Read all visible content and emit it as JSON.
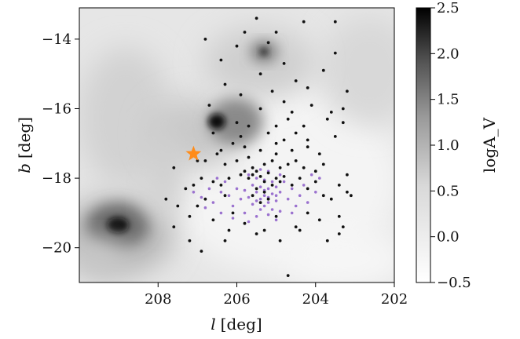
{
  "chart_data": {
    "type": "scatter",
    "background": "extinction map (logA_V), grayscale",
    "xlabel": {
      "var": "l",
      "unit": "[deg]"
    },
    "ylabel": {
      "var": "b",
      "unit": "[deg]"
    },
    "xlim": [
      210,
      202
    ],
    "ylim": [
      -21,
      -13.1
    ],
    "xticks": [
      208,
      206,
      204,
      202
    ],
    "yticks": [
      -14,
      -16,
      -18,
      -20
    ],
    "colorbar": {
      "label": "logA_V",
      "range": [
        -0.5,
        2.5
      ],
      "ticks": [
        "2.5",
        "2.0",
        "1.5",
        "1.0",
        "0.5",
        "0.0",
        "−0.5"
      ],
      "tick_values": [
        2.5,
        2.0,
        1.5,
        1.0,
        0.5,
        0.0,
        -0.5
      ]
    },
    "star_marker": {
      "l": 207.1,
      "b": -17.3,
      "color": "#ff8c1a"
    },
    "series": [
      {
        "color": "#111111",
        "points": [
          [
            205.5,
            -13.4
          ],
          [
            205.8,
            -13.8
          ],
          [
            205.0,
            -13.8
          ],
          [
            204.3,
            -13.5
          ],
          [
            203.5,
            -13.5
          ],
          [
            206.8,
            -14.0
          ],
          [
            206.0,
            -14.2
          ],
          [
            205.2,
            -14.1
          ],
          [
            203.5,
            -14.4
          ],
          [
            206.4,
            -14.6
          ],
          [
            204.8,
            -14.7
          ],
          [
            203.8,
            -14.9
          ],
          [
            205.4,
            -15.0
          ],
          [
            204.5,
            -15.2
          ],
          [
            204.2,
            -15.4
          ],
          [
            206.3,
            -15.3
          ],
          [
            205.9,
            -15.6
          ],
          [
            205.1,
            -15.5
          ],
          [
            204.8,
            -15.8
          ],
          [
            203.2,
            -15.5
          ],
          [
            204.1,
            -15.9
          ],
          [
            206.7,
            -15.9
          ],
          [
            205.4,
            -16.0
          ],
          [
            204.6,
            -16.1
          ],
          [
            203.6,
            -16.1
          ],
          [
            203.3,
            -16.0
          ],
          [
            206.0,
            -16.4
          ],
          [
            205.7,
            -16.5
          ],
          [
            205.0,
            -16.5
          ],
          [
            204.3,
            -16.5
          ],
          [
            203.7,
            -16.3
          ],
          [
            206.6,
            -16.7
          ],
          [
            205.2,
            -16.7
          ],
          [
            204.8,
            -16.9
          ],
          [
            203.3,
            -16.4
          ],
          [
            203.5,
            -16.8
          ],
          [
            204.5,
            -16.7
          ],
          [
            206.1,
            -17.0
          ],
          [
            205.8,
            -17.1
          ],
          [
            205.4,
            -17.2
          ],
          [
            205.0,
            -17.0
          ],
          [
            204.6,
            -17.2
          ],
          [
            204.2,
            -17.1
          ],
          [
            203.9,
            -17.3
          ],
          [
            206.5,
            -17.3
          ],
          [
            206.8,
            -17.5
          ],
          [
            206.3,
            -17.6
          ],
          [
            206.0,
            -17.5
          ],
          [
            205.7,
            -17.4
          ],
          [
            205.6,
            -17.7
          ],
          [
            205.3,
            -17.6
          ],
          [
            205.1,
            -17.5
          ],
          [
            204.9,
            -17.7
          ],
          [
            204.7,
            -17.6
          ],
          [
            204.5,
            -17.5
          ],
          [
            204.3,
            -17.7
          ],
          [
            204.0,
            -17.8
          ],
          [
            203.8,
            -17.6
          ],
          [
            205.8,
            -17.8
          ],
          [
            205.9,
            -17.9
          ],
          [
            205.6,
            -17.9
          ],
          [
            205.5,
            -17.8
          ],
          [
            205.4,
            -17.95
          ],
          [
            205.7,
            -18.0
          ],
          [
            205.3,
            -18.1
          ],
          [
            205.2,
            -17.85
          ],
          [
            205.0,
            -18.0
          ],
          [
            205.1,
            -18.2
          ],
          [
            204.9,
            -18.1
          ],
          [
            204.8,
            -17.95
          ],
          [
            205.5,
            -18.3
          ],
          [
            205.3,
            -18.4
          ],
          [
            205.6,
            -18.5
          ],
          [
            205.2,
            -18.6
          ],
          [
            205.4,
            -18.7
          ],
          [
            206.2,
            -18.0
          ],
          [
            206.4,
            -18.2
          ],
          [
            206.6,
            -18.1
          ],
          [
            206.9,
            -18.0
          ],
          [
            207.1,
            -18.2
          ],
          [
            206.3,
            -18.5
          ],
          [
            206.8,
            -18.6
          ],
          [
            207.0,
            -18.8
          ],
          [
            204.6,
            -18.2
          ],
          [
            204.4,
            -18.0
          ],
          [
            204.2,
            -18.3
          ],
          [
            204.0,
            -18.1
          ],
          [
            203.8,
            -18.5
          ],
          [
            203.6,
            -18.6
          ],
          [
            203.4,
            -18.2
          ],
          [
            203.2,
            -18.4
          ],
          [
            203.1,
            -18.5
          ],
          [
            207.3,
            -18.3
          ],
          [
            207.5,
            -18.8
          ],
          [
            207.2,
            -19.1
          ],
          [
            206.6,
            -19.2
          ],
          [
            206.1,
            -19.0
          ],
          [
            205.8,
            -19.3
          ],
          [
            205.0,
            -19.1
          ],
          [
            204.5,
            -19.4
          ],
          [
            204.2,
            -19.0
          ],
          [
            203.9,
            -19.2
          ],
          [
            203.4,
            -19.1
          ],
          [
            203.3,
            -19.4
          ],
          [
            203.4,
            -19.6
          ],
          [
            207.6,
            -19.4
          ],
          [
            207.2,
            -19.8
          ],
          [
            206.9,
            -20.1
          ],
          [
            206.3,
            -19.8
          ],
          [
            205.5,
            -19.6
          ],
          [
            204.9,
            -19.8
          ],
          [
            204.4,
            -19.5
          ],
          [
            204.7,
            -20.8
          ],
          [
            207.6,
            -17.7
          ],
          [
            207.8,
            -18.6
          ],
          [
            207.0,
            -17.5
          ],
          [
            206.4,
            -17.2
          ],
          [
            205.0,
            -17.3
          ],
          [
            204.2,
            -16.9
          ],
          [
            203.2,
            -17.9
          ],
          [
            205.9,
            -16.8
          ],
          [
            204.7,
            -16.3
          ],
          [
            206.2,
            -19.5
          ],
          [
            205.3,
            -19.5
          ],
          [
            203.7,
            -19.8
          ]
        ]
      },
      {
        "color": "#9b72cf",
        "points": [
          [
            205.7,
            -17.9
          ],
          [
            205.5,
            -18.0
          ],
          [
            205.3,
            -18.05
          ],
          [
            205.1,
            -18.1
          ],
          [
            205.6,
            -18.2
          ],
          [
            205.4,
            -18.25
          ],
          [
            205.2,
            -18.3
          ],
          [
            205.0,
            -18.25
          ],
          [
            205.5,
            -18.4
          ],
          [
            205.3,
            -18.5
          ],
          [
            205.1,
            -18.45
          ],
          [
            204.9,
            -18.4
          ],
          [
            205.7,
            -18.55
          ],
          [
            205.4,
            -18.6
          ],
          [
            205.2,
            -18.7
          ],
          [
            205.0,
            -18.65
          ],
          [
            205.6,
            -18.75
          ],
          [
            205.3,
            -18.8
          ],
          [
            205.1,
            -18.9
          ],
          [
            205.8,
            -18.35
          ],
          [
            205.9,
            -18.6
          ],
          [
            206.0,
            -18.3
          ],
          [
            206.2,
            -18.5
          ],
          [
            206.4,
            -18.4
          ],
          [
            206.6,
            -18.7
          ],
          [
            206.1,
            -18.8
          ],
          [
            205.8,
            -19.0
          ],
          [
            205.5,
            -19.1
          ],
          [
            205.2,
            -19.05
          ],
          [
            204.9,
            -18.95
          ],
          [
            204.7,
            -18.6
          ],
          [
            204.6,
            -18.3
          ],
          [
            204.5,
            -18.8
          ],
          [
            204.4,
            -18.5
          ],
          [
            204.3,
            -18.2
          ],
          [
            204.8,
            -18.1
          ],
          [
            204.9,
            -17.9
          ],
          [
            205.2,
            -17.8
          ],
          [
            205.4,
            -17.75
          ],
          [
            205.6,
            -17.7
          ],
          [
            206.3,
            -18.1
          ],
          [
            206.5,
            -18.0
          ],
          [
            206.7,
            -18.3
          ],
          [
            206.9,
            -18.55
          ],
          [
            207.1,
            -18.4
          ],
          [
            206.8,
            -18.85
          ],
          [
            206.4,
            -19.0
          ],
          [
            206.1,
            -19.15
          ],
          [
            205.7,
            -19.25
          ],
          [
            205.0,
            -19.2
          ],
          [
            204.6,
            -19.0
          ],
          [
            204.2,
            -18.7
          ],
          [
            204.0,
            -18.4
          ],
          [
            203.9,
            -18.0
          ],
          [
            204.1,
            -17.9
          ],
          [
            205.3,
            -18.35
          ],
          [
            205.5,
            -18.65
          ],
          [
            205.2,
            -18.55
          ],
          [
            205.4,
            -18.9
          ],
          [
            205.0,
            -18.5
          ]
        ]
      }
    ]
  }
}
